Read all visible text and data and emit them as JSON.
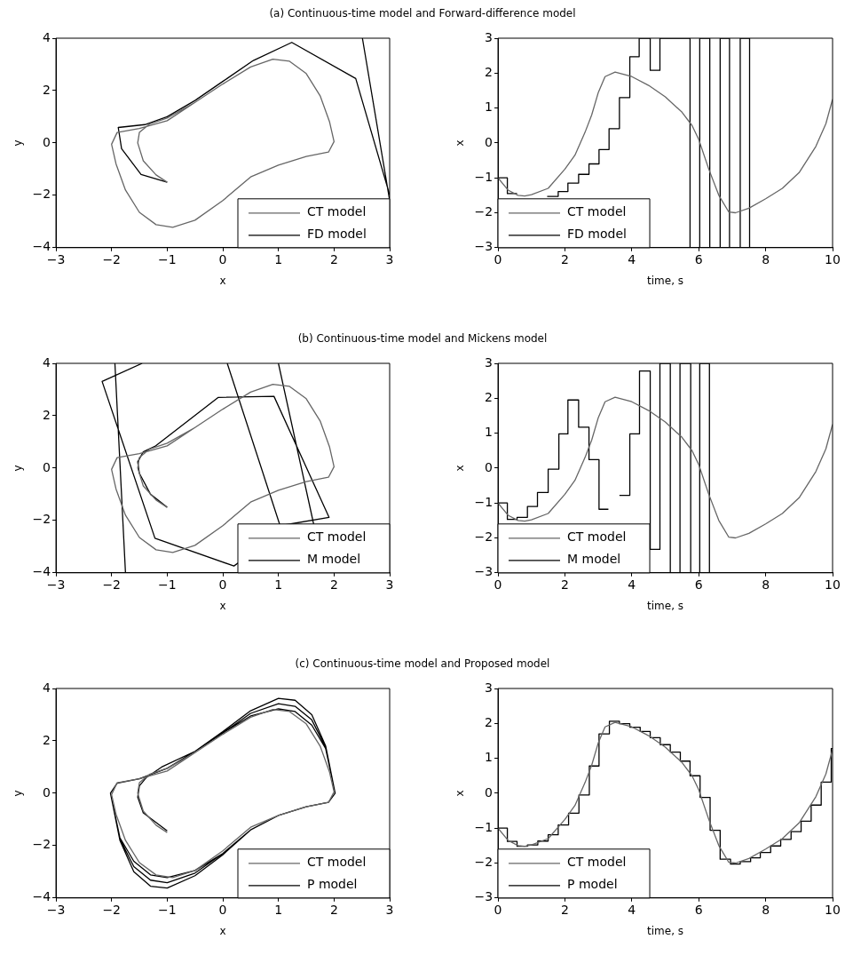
{
  "chart_data": [
    {
      "type": "line",
      "title": "(a) Continuous-time model and Forward-difference model",
      "xlabel": "x",
      "ylabel": "y",
      "xlim": [
        -3,
        3
      ],
      "ylim": [
        -4,
        4
      ],
      "xticks": [
        -3,
        -2,
        -1,
        0,
        1,
        2,
        3
      ],
      "yticks": [
        -4,
        -2,
        0,
        2,
        4
      ],
      "legend": "bottom right",
      "series": [
        {
          "name": "CT model",
          "color": "#666666",
          "x": [
            -1.0,
            -1.2,
            -1.43,
            -1.53,
            -1.5,
            -1.32,
            -1.0,
            -0.5,
            0,
            0.5,
            0.9,
            1.2,
            1.5,
            1.75,
            1.92,
            2.0,
            1.9,
            1.5,
            1.0,
            0.5,
            0,
            -0.5,
            -0.9,
            -1.2,
            -1.5,
            -1.75,
            -1.92,
            -2.0,
            -1.9,
            -1.5,
            -1.0,
            -0.5,
            0,
            0.5,
            0.9,
            1.2
          ],
          "values": [
            -1.5,
            -1.22,
            -0.68,
            0.0,
            0.4,
            0.72,
            0.95,
            1.55,
            2.25,
            2.9,
            3.2,
            3.12,
            2.65,
            1.8,
            0.8,
            0.05,
            -0.35,
            -0.52,
            -0.85,
            -1.3,
            -2.2,
            -2.95,
            -3.22,
            -3.12,
            -2.65,
            -1.8,
            -0.8,
            -0.05,
            0.4,
            0.55,
            0.85,
            1.55,
            2.25,
            2.9,
            3.2,
            3.12
          ]
        },
        {
          "name": "FD model",
          "color": "#000000",
          "x": [
            -1.0,
            -1.47,
            -1.82,
            -1.88,
            -1.4,
            -1.0,
            -0.5,
            0,
            0.55,
            1.24,
            2.39,
            3.0,
            null,
            2.51,
            3.0
          ],
          "values": [
            -1.5,
            -1.2,
            -0.22,
            0.59,
            0.7,
            1.0,
            1.62,
            2.35,
            3.15,
            3.84,
            2.46,
            -1.98,
            null,
            4.0,
            -2.2
          ]
        }
      ]
    },
    {
      "type": "line",
      "xlabel": "time, s",
      "ylabel": "x",
      "xlim": [
        0,
        10
      ],
      "ylim": [
        -3,
        3
      ],
      "xticks": [
        0,
        2,
        4,
        6,
        8,
        10
      ],
      "yticks": [
        -3,
        -2,
        -1,
        0,
        1,
        2,
        3
      ],
      "legend": "bottom left",
      "series": [
        {
          "name": "CT model",
          "color": "#666666",
          "x": [
            0,
            0.3,
            0.6,
            0.8,
            1.0,
            1.5,
            2.0,
            2.3,
            2.6,
            2.8,
            3.0,
            3.2,
            3.5,
            4.0,
            4.5,
            5.0,
            5.5,
            5.8,
            6.0,
            6.3,
            6.6,
            6.9,
            7.1,
            7.5,
            8.0,
            8.5,
            9.0,
            9.5,
            9.8,
            10
          ],
          "values": [
            -1.0,
            -1.35,
            -1.5,
            -1.52,
            -1.48,
            -1.3,
            -0.75,
            -0.35,
            0.3,
            0.8,
            1.45,
            1.9,
            2.03,
            1.9,
            1.65,
            1.32,
            0.88,
            0.5,
            0.1,
            -0.75,
            -1.5,
            -1.98,
            -2.0,
            -1.87,
            -1.6,
            -1.3,
            -0.85,
            -0.1,
            0.55,
            1.25
          ]
        },
        {
          "name": "FD model",
          "type": "step",
          "color": "#000000",
          "x": [
            0,
            0.28,
            0.57,
            0.87,
            1.17,
            1.47,
            1.8,
            2.09,
            2.41,
            2.72,
            3.02,
            3.32,
            3.63,
            3.94,
            4.22,
            4.55,
            4.84,
            5.74,
            6.03,
            6.33,
            6.64,
            6.92,
            7.24,
            7.52
          ],
          "values": [
            -1.0,
            -1.45,
            null,
            null,
            null,
            -1.53,
            -1.39,
            -1.15,
            -0.9,
            -0.6,
            -0.19,
            0.41,
            1.3,
            2.47,
            3,
            2.08,
            3,
            -3,
            3,
            -3,
            3,
            -3,
            3,
            -3
          ]
        }
      ]
    },
    {
      "type": "line",
      "title": "(b) Continuous-time model and Mickens model",
      "xlabel": "x",
      "ylabel": "y",
      "xlim": [
        -3,
        3
      ],
      "ylim": [
        -4,
        4
      ],
      "xticks": [
        -3,
        -2,
        -1,
        0,
        1,
        2,
        3
      ],
      "yticks": [
        -4,
        -2,
        0,
        2,
        4
      ],
      "legend": "bottom right",
      "series": [
        {
          "name": "CT model",
          "color": "#666666",
          "x": [
            -1.0,
            -1.2,
            -1.43,
            -1.53,
            -1.5,
            -1.32,
            -1.0,
            -0.5,
            0,
            0.5,
            0.9,
            1.2,
            1.5,
            1.75,
            1.92,
            2.0,
            1.9,
            1.5,
            1.0,
            0.5,
            0,
            -0.5,
            -0.9,
            -1.2,
            -1.5,
            -1.75,
            -1.92,
            -2.0,
            -1.9,
            -1.5,
            -1.0,
            -0.5,
            0,
            0.5,
            0.9,
            1.2
          ],
          "values": [
            -1.5,
            -1.22,
            -0.68,
            0.0,
            0.4,
            0.72,
            0.95,
            1.55,
            2.25,
            2.9,
            3.2,
            3.12,
            2.65,
            1.8,
            0.8,
            0.05,
            -0.35,
            -0.52,
            -0.85,
            -1.3,
            -2.2,
            -2.95,
            -3.22,
            -3.12,
            -2.65,
            -1.8,
            -0.8,
            -0.05,
            0.4,
            0.55,
            0.85,
            1.55,
            2.25,
            2.9,
            3.2,
            3.12
          ]
        },
        {
          "name": "M model",
          "color": "#000000",
          "x": [
            -1.0,
            -1.3,
            -1.5,
            -1.53,
            -1.43,
            -1.22,
            -0.08,
            0.92,
            1.91,
            1.03,
            null,
            0.29,
            0.2,
            -1.22,
            -2.17,
            -1.45,
            null,
            0.08,
            1.03,
            null,
            1.0,
            1.64,
            null,
            -1.94,
            -1.75
          ],
          "values": [
            -1.5,
            -1.0,
            -0.2,
            0.24,
            0.62,
            0.83,
            2.7,
            2.74,
            -1.88,
            -2.2,
            null,
            -3.6,
            -3.74,
            -2.68,
            3.31,
            4.0,
            null,
            4.0,
            -2.2,
            null,
            4.0,
            -2.2,
            null,
            4.0,
            -4.0
          ]
        }
      ]
    },
    {
      "type": "line",
      "xlabel": "time, s",
      "ylabel": "x",
      "xlim": [
        0,
        10
      ],
      "ylim": [
        -3,
        3
      ],
      "xticks": [
        0,
        2,
        4,
        6,
        8,
        10
      ],
      "yticks": [
        -3,
        -2,
        -1,
        0,
        1,
        2,
        3
      ],
      "legend": "bottom left",
      "series": [
        {
          "name": "CT model",
          "color": "#666666",
          "x": [
            0,
            0.3,
            0.6,
            0.8,
            1.0,
            1.5,
            2.0,
            2.3,
            2.6,
            2.8,
            3.0,
            3.2,
            3.5,
            4.0,
            4.5,
            5.0,
            5.5,
            5.8,
            6.0,
            6.3,
            6.6,
            6.9,
            7.1,
            7.5,
            8.0,
            8.5,
            9.0,
            9.5,
            9.8,
            10
          ],
          "values": [
            -1.0,
            -1.35,
            -1.5,
            -1.52,
            -1.48,
            -1.3,
            -0.75,
            -0.35,
            0.3,
            0.8,
            1.45,
            1.9,
            2.03,
            1.9,
            1.65,
            1.32,
            0.88,
            0.5,
            0.1,
            -0.75,
            -1.5,
            -1.98,
            -2.0,
            -1.87,
            -1.6,
            -1.3,
            -0.85,
            -0.1,
            0.55,
            1.25
          ]
        },
        {
          "name": "M model",
          "type": "step",
          "color": "#000000",
          "x": [
            0,
            0.28,
            0.57,
            0.88,
            1.18,
            1.5,
            1.82,
            2.09,
            2.41,
            2.72,
            3.02,
            3.3,
            3.63,
            3.94,
            4.23,
            4.55,
            4.84,
            5.15,
            5.44,
            5.76,
            6.03,
            6.32
          ],
          "values": [
            -1.0,
            -1.47,
            -1.41,
            -1.1,
            -0.7,
            -0.03,
            0.98,
            1.95,
            1.17,
            0.24,
            -1.18,
            null,
            -0.78,
            0.98,
            2.78,
            -2.33,
            3,
            -3,
            3,
            -3,
            3,
            -3
          ]
        }
      ]
    },
    {
      "type": "line",
      "title": "(c) Continuous-time model and Proposed model",
      "xlabel": "x",
      "ylabel": "y",
      "xlim": [
        -3,
        3
      ],
      "ylim": [
        -4,
        4
      ],
      "xticks": [
        -3,
        -2,
        -1,
        0,
        1,
        2,
        3
      ],
      "yticks": [
        -4,
        -2,
        0,
        2,
        4
      ],
      "legend": "bottom right",
      "series": [
        {
          "name": "CT model",
          "color": "#666666",
          "x": [
            -1.0,
            -1.2,
            -1.43,
            -1.53,
            -1.5,
            -1.32,
            -1.0,
            -0.5,
            0,
            0.5,
            0.9,
            1.2,
            1.5,
            1.75,
            1.92,
            2.0,
            1.9,
            1.5,
            1.0,
            0.5,
            0,
            -0.5,
            -0.9,
            -1.2,
            -1.5,
            -1.75,
            -1.92,
            -2.0,
            -1.9,
            -1.5,
            -1.0,
            -0.5,
            0,
            0.5,
            0.9,
            1.2
          ],
          "values": [
            -1.5,
            -1.22,
            -0.68,
            0.0,
            0.4,
            0.72,
            0.95,
            1.55,
            2.25,
            2.9,
            3.2,
            3.12,
            2.65,
            1.8,
            0.8,
            0.05,
            -0.35,
            -0.52,
            -0.85,
            -1.3,
            -2.2,
            -2.95,
            -3.22,
            -3.12,
            -2.65,
            -1.8,
            -0.8,
            -0.05,
            0.4,
            0.55,
            0.85,
            1.55,
            2.25,
            2.9,
            3.2,
            3.12
          ]
        },
        {
          "name": "P model",
          "color": "#000000",
          "x": [
            -1.0,
            -1.43,
            -1.53,
            -1.5,
            -1.37,
            -1.1,
            -0.5,
            0,
            0.5,
            1.0,
            1.3,
            1.6,
            1.85,
            2.02,
            1.9,
            1.5,
            1.0,
            0.5,
            0,
            -0.5,
            -1.0,
            -1.3,
            -1.6,
            -1.85,
            -2.02,
            -1.9,
            -1.5,
            -1.0,
            -0.5,
            0,
            0.5,
            1.0,
            1.3,
            1.6,
            1.85,
            2.02,
            1.9,
            1.5,
            1.0,
            0.5,
            0,
            -0.5,
            -1.0,
            -1.3,
            -1.6,
            -1.85,
            -2.02,
            -1.9,
            -1.5,
            -1.0,
            -0.5,
            0,
            0.5,
            1.0,
            1.3,
            1.6,
            1.85,
            2.02,
            1.9,
            1.5,
            1.0,
            0.5,
            0,
            -0.5,
            -1.0,
            -1.3,
            -1.6,
            -1.85,
            -2.02,
            -1.9,
            -1.5,
            -1.0
          ],
          "values": [
            -1.44,
            -0.75,
            -0.15,
            0.28,
            0.61,
            1.0,
            1.6,
            2.3,
            2.95,
            3.22,
            3.12,
            2.6,
            1.7,
            0,
            -0.35,
            -0.52,
            -0.85,
            -1.4,
            -2.3,
            -2.95,
            -3.22,
            -3.12,
            -2.6,
            -1.7,
            0,
            0.38,
            0.55,
            0.95,
            1.6,
            2.3,
            3.05,
            3.42,
            3.32,
            2.8,
            1.75,
            0,
            -0.35,
            -0.52,
            -0.85,
            -1.4,
            -2.3,
            -3.05,
            -3.42,
            -3.32,
            -2.8,
            -1.75,
            0,
            0.38,
            0.55,
            0.95,
            1.6,
            2.35,
            3.15,
            3.62,
            3.55,
            3.0,
            1.8,
            0,
            -0.35,
            -0.52,
            -0.85,
            -1.4,
            -2.35,
            -3.15,
            -3.62,
            -3.55,
            -3.0,
            -1.8,
            0,
            0.38,
            0.55,
            0.95
          ]
        }
      ]
    },
    {
      "type": "line",
      "xlabel": "time, s",
      "ylabel": "x",
      "xlim": [
        0,
        10
      ],
      "ylim": [
        -3,
        3
      ],
      "xticks": [
        0,
        2,
        4,
        6,
        8,
        10
      ],
      "yticks": [
        -3,
        -2,
        -1,
        0,
        1,
        2,
        3
      ],
      "legend": "bottom left",
      "series": [
        {
          "name": "CT model",
          "color": "#666666",
          "x": [
            0,
            0.3,
            0.6,
            0.8,
            1.0,
            1.5,
            2.0,
            2.3,
            2.6,
            2.8,
            3.0,
            3.2,
            3.5,
            4.0,
            4.5,
            5.0,
            5.5,
            5.8,
            6.0,
            6.3,
            6.6,
            6.9,
            7.1,
            7.5,
            8.0,
            8.5,
            9.0,
            9.5,
            9.8,
            10
          ],
          "values": [
            -1.0,
            -1.35,
            -1.5,
            -1.52,
            -1.48,
            -1.3,
            -0.75,
            -0.35,
            0.3,
            0.8,
            1.45,
            1.9,
            2.03,
            1.9,
            1.65,
            1.32,
            0.88,
            0.5,
            0.1,
            -0.75,
            -1.5,
            -1.98,
            -2.0,
            -1.87,
            -1.6,
            -1.3,
            -0.85,
            -0.1,
            0.55,
            1.25
          ]
        },
        {
          "name": "P model",
          "type": "step",
          "color": "#000000",
          "x": [
            0,
            0.28,
            0.57,
            0.88,
            1.19,
            1.5,
            1.8,
            2.11,
            2.42,
            2.73,
            3.02,
            3.33,
            3.63,
            3.94,
            4.25,
            4.55,
            4.85,
            5.15,
            5.45,
            5.74,
            6.04,
            6.34,
            6.64,
            6.95,
            7.24,
            7.55,
            7.84,
            8.15,
            8.45,
            8.76,
            9.06,
            9.36,
            9.66,
            9.96,
            10
          ],
          "values": [
            -1.0,
            -1.38,
            -1.52,
            -1.48,
            -1.37,
            -1.19,
            -0.91,
            -0.57,
            -0.05,
            0.78,
            1.7,
            2.06,
            1.99,
            1.89,
            1.77,
            1.59,
            1.39,
            1.18,
            0.92,
            0.5,
            -0.12,
            -1.06,
            -1.89,
            -2.03,
            -1.96,
            -1.85,
            -1.7,
            -1.51,
            -1.32,
            -1.1,
            -0.8,
            -0.34,
            0.32,
            1.28,
            1.28
          ]
        }
      ]
    }
  ]
}
